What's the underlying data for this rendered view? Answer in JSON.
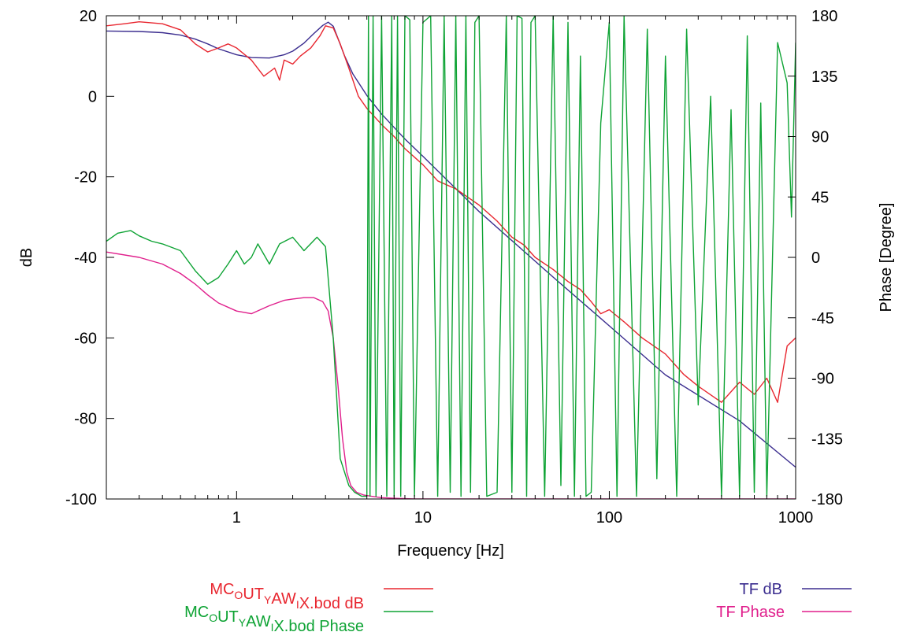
{
  "chart_data": {
    "type": "line",
    "xlabel": "Frequency [Hz]",
    "ylabel": "dB",
    "y2label": "Phase [Degree]",
    "x_scale": "log",
    "xlim": [
      0.2,
      1000
    ],
    "ylim": [
      -100,
      20
    ],
    "y2lim": [
      -180,
      180
    ],
    "x_ticks": [
      1,
      10,
      100,
      1000
    ],
    "x_tick_labels": [
      "1",
      "10",
      "100",
      "1000"
    ],
    "y_ticks": [
      20,
      0,
      -20,
      -40,
      -60,
      -80,
      -100
    ],
    "y_tick_labels": [
      "20",
      "0",
      "-20",
      "-40",
      "-60",
      "-80",
      "-100"
    ],
    "y2_ticks": [
      180,
      135,
      90,
      45,
      0,
      -45,
      -90,
      -135,
      -180
    ],
    "y2_tick_labels": [
      "180",
      "135",
      "90",
      "45",
      "0",
      "-45",
      "-90",
      "-135",
      "-180"
    ],
    "grid": false,
    "legend_placement": "bottom",
    "series": [
      {
        "name": "MC_{O}UT_{Y}AW_{I}X.bod dB",
        "legend_main": [
          "MC",
          "UT",
          "AW",
          "X.bod dB"
        ],
        "legend_sub": [
          "O",
          "Y",
          "I"
        ],
        "axis": "left",
        "color": "#e8262f",
        "x": [
          0.2,
          0.25,
          0.3,
          0.4,
          0.5,
          0.6,
          0.7,
          0.8,
          0.9,
          1.0,
          1.2,
          1.4,
          1.6,
          1.7,
          1.8,
          2.0,
          2.2,
          2.5,
          2.8,
          3.0,
          3.3,
          3.6,
          4.0,
          4.5,
          5.0,
          6.0,
          7.0,
          8.0,
          10,
          12,
          15,
          20,
          25,
          30,
          35,
          40,
          50,
          60,
          70,
          80,
          90,
          100,
          120,
          150,
          200,
          250,
          300,
          400,
          500,
          600,
          700,
          800,
          900,
          1000
        ],
        "y": [
          17.5,
          18,
          18.5,
          18,
          16.5,
          13,
          11,
          12,
          13,
          12,
          9,
          5,
          7,
          4,
          9,
          8,
          10,
          12,
          15,
          17.5,
          17,
          13,
          7,
          0,
          -3,
          -7,
          -10,
          -13,
          -17,
          -21,
          -23,
          -27,
          -31,
          -35,
          -37,
          -40,
          -43,
          -46,
          -48,
          -51,
          -54,
          -53,
          -56,
          -60,
          -64,
          -69,
          -72,
          -76,
          -71,
          -74,
          -70,
          -76,
          -62,
          -60
        ]
      },
      {
        "name": "MC_{O}UT_{Y}AW_{I}X.bod Phase",
        "legend_main": [
          "MC",
          "UT",
          "AW",
          "X.bod Phase"
        ],
        "legend_sub": [
          "O",
          "Y",
          "I"
        ],
        "axis": "right",
        "color": "#0ea334",
        "x": [
          0.2,
          0.23,
          0.27,
          0.3,
          0.35,
          0.4,
          0.5,
          0.6,
          0.7,
          0.8,
          0.9,
          1.0,
          1.1,
          1.2,
          1.3,
          1.5,
          1.7,
          2.0,
          2.3,
          2.7,
          3.0,
          3.3,
          3.6,
          4.0,
          4.3,
          4.7,
          5.0,
          5.1,
          5.2,
          5.4,
          5.6,
          6.0,
          6.4,
          6.8,
          7.0,
          7.3,
          7.6,
          8.0,
          8.5,
          9.0,
          10,
          11,
          12,
          13,
          14,
          15,
          16,
          17,
          18,
          19,
          20,
          22,
          25,
          28,
          30,
          32,
          34,
          36,
          38,
          40,
          45,
          50,
          55,
          60,
          65,
          70,
          75,
          80,
          90,
          100,
          110,
          120,
          140,
          160,
          180,
          200,
          230,
          260,
          300,
          350,
          400,
          450,
          500,
          550,
          600,
          650,
          700,
          800,
          900,
          950,
          1000
        ],
        "y": [
          12,
          18,
          20,
          16,
          12,
          10,
          5,
          -10,
          -20,
          -15,
          -5,
          5,
          -5,
          0,
          10,
          -5,
          10,
          15,
          5,
          15,
          8,
          -60,
          -150,
          -170,
          -175,
          -178,
          -178,
          180,
          -178,
          180,
          -178,
          180,
          -178,
          180,
          -178,
          180,
          -178,
          180,
          177,
          -178,
          175,
          180,
          -178,
          180,
          -175,
          180,
          -178,
          180,
          -175,
          175,
          180,
          -178,
          -175,
          180,
          -175,
          180,
          178,
          -178,
          175,
          180,
          -178,
          180,
          -170,
          175,
          -178,
          150,
          -178,
          -175,
          100,
          175,
          -178,
          180,
          -178,
          170,
          -165,
          150,
          -178,
          170,
          -110,
          120,
          -178,
          110,
          -178,
          165,
          -175,
          115,
          -178,
          160,
          130,
          30,
          160
        ]
      },
      {
        "name": "TF dB",
        "legend_main": [
          "TF dB"
        ],
        "legend_sub": [],
        "axis": "left",
        "color": "#3b2d8f",
        "x": [
          0.2,
          0.3,
          0.4,
          0.5,
          0.6,
          0.7,
          0.8,
          1.0,
          1.2,
          1.5,
          1.8,
          2.0,
          2.3,
          2.6,
          2.9,
          3.1,
          3.3,
          3.5,
          3.8,
          4.2,
          5.0,
          6.0,
          8.0,
          10,
          20,
          50,
          100,
          200,
          500,
          1000
        ],
        "y": [
          16.2,
          16.1,
          15.8,
          15.2,
          14.2,
          13.0,
          11.8,
          10.3,
          9.6,
          9.5,
          10.3,
          11.2,
          13.2,
          15.6,
          17.6,
          18.4,
          17.4,
          14.4,
          10.0,
          5.6,
          0.2,
          -4.4,
          -10.6,
          -14.9,
          -28.6,
          -44.9,
          -57.0,
          -69.2,
          -80.6,
          -92.1
        ]
      },
      {
        "name": "TF Phase",
        "legend_main": [
          "TF Phase"
        ],
        "legend_sub": [],
        "axis": "right",
        "color": "#e01f8c",
        "x": [
          0.2,
          0.3,
          0.4,
          0.5,
          0.6,
          0.7,
          0.8,
          1.0,
          1.2,
          1.5,
          1.8,
          2.0,
          2.3,
          2.6,
          2.9,
          3.1,
          3.3,
          3.5,
          3.7,
          3.9,
          4.1,
          4.4,
          4.8,
          5.3,
          6.0,
          7.0,
          9.0,
          12,
          20,
          50,
          100,
          1000
        ],
        "y": [
          4,
          0,
          -5,
          -12,
          -20,
          -28,
          -34,
          -40,
          -42,
          -36,
          -32,
          -31,
          -30,
          -30,
          -33,
          -40,
          -60,
          -95,
          -135,
          -160,
          -170,
          -175,
          -177,
          -178,
          -179,
          -179.5,
          -180,
          -180,
          -180,
          -180,
          -180,
          -180
        ]
      }
    ]
  }
}
